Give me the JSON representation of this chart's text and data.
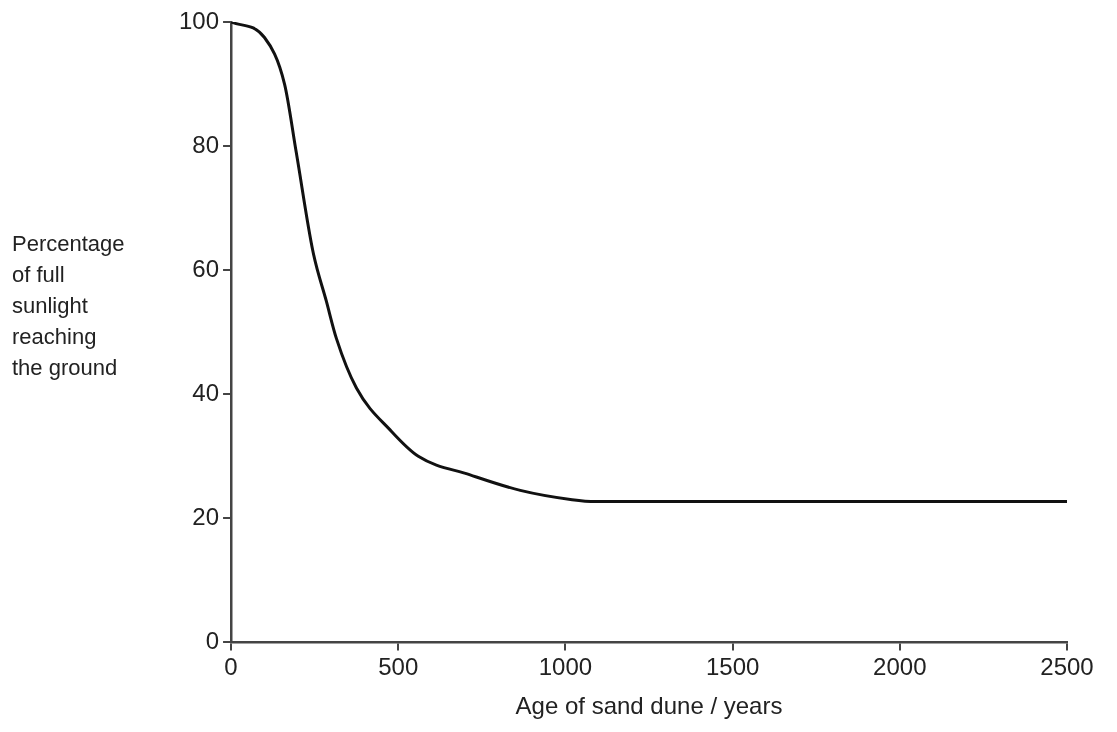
{
  "chart_data": {
    "type": "line",
    "xlabel": "Age of sand dune / years",
    "ylabel": "Percentage of full sunlight reaching the ground",
    "x": [
      0,
      100,
      160,
      195,
      245,
      285,
      315,
      375,
      480,
      560,
      715,
      865,
      1020,
      1090,
      2500
    ],
    "series": [
      {
        "color": "#111111",
        "values": [
          100,
          97.5,
          90,
          79,
          63,
          55,
          49,
          41,
          34,
          30,
          27,
          24.5,
          23,
          22.7,
          22.7
        ]
      }
    ],
    "xlim": [
      0,
      2500
    ],
    "xticks": [
      0,
      500,
      1000,
      1500,
      2000,
      2500
    ],
    "ylim": [
      0,
      100
    ],
    "yticks": [
      0,
      20,
      40,
      60,
      80,
      100
    ],
    "grid": false,
    "legend": false,
    "marker": "none",
    "line_style": "solid"
  }
}
